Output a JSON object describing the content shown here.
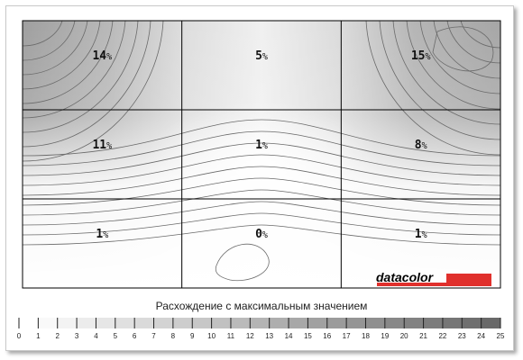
{
  "chart_data": {
    "type": "heatmap",
    "title": "",
    "legend_title": "Расхождение с максимальным значением",
    "grid": {
      "rows": 3,
      "cols": 3
    },
    "cells": [
      [
        "14%",
        "5%",
        "15%"
      ],
      [
        "11%",
        "1%",
        "8%"
      ],
      [
        "1%",
        "0%",
        "1%"
      ]
    ],
    "values": [
      [
        14,
        5,
        15
      ],
      [
        11,
        1,
        8
      ],
      [
        1,
        0,
        1
      ]
    ],
    "unit": "%",
    "scale_ticks": [
      "0",
      "1",
      "2",
      "3",
      "4",
      "5",
      "6",
      "7",
      "8",
      "9",
      "10",
      "11",
      "12",
      "13",
      "14",
      "15",
      "16",
      "17",
      "18",
      "19",
      "20",
      "21",
      "22",
      "23",
      "24",
      "25"
    ],
    "scale_range": [
      0,
      25
    ],
    "brand": "datacolor",
    "colors": {
      "brand_bar": "#e0302c",
      "grid_line": "#000000",
      "contour": "#666666"
    }
  }
}
